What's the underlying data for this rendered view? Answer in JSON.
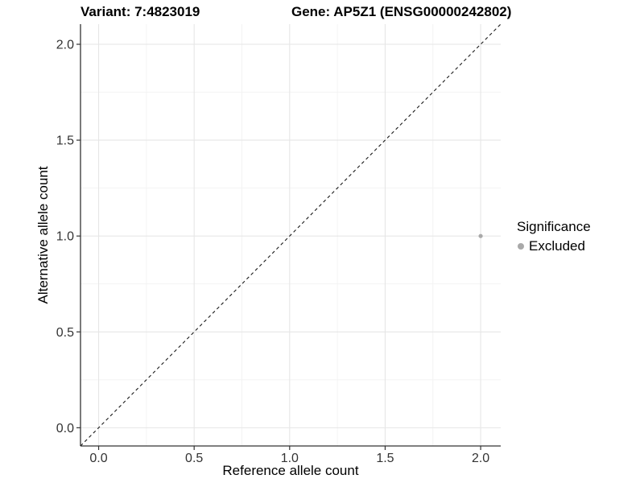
{
  "chart_data": {
    "type": "scatter",
    "title_left": "Variant: 7:4823019",
    "title_right": "Gene: AP5Z1 (ENSG00000242802)",
    "xlabel": "Reference allele count",
    "ylabel": "Alternative allele count",
    "xlim": [
      -0.095,
      2.105
    ],
    "ylim": [
      -0.095,
      2.105
    ],
    "x_ticks": {
      "values": [
        0,
        0.5,
        1,
        1.5,
        2
      ],
      "labels": [
        "0.0",
        "0.5",
        "1.0",
        "1.5",
        "2.0"
      ]
    },
    "y_ticks": {
      "values": [
        0,
        0.5,
        1,
        1.5,
        2
      ],
      "labels": [
        "0.0",
        "0.5",
        "1.0",
        "1.5",
        "2.0"
      ]
    },
    "x_minor": [
      0.25,
      0.75,
      1.25,
      1.75
    ],
    "y_minor": [
      0.25,
      0.75,
      1.25,
      1.75
    ],
    "grid": true,
    "legend_position": "right",
    "reference_line": {
      "type": "identity",
      "equation": "y = x",
      "style": "dashed",
      "color": "#1a1a1a"
    },
    "points": [
      {
        "x": 2,
        "y": 1,
        "series": "Excluded"
      }
    ],
    "legend": {
      "title": "Significance",
      "entries": [
        {
          "label": "Excluded",
          "color": "#a9a9a9"
        }
      ]
    },
    "colors": {
      "grid_major": "#e6e6e6",
      "grid_minor": "#f2f2f2",
      "axis": "#333333",
      "tick_label": "#333333",
      "point_excluded": "#a9a9a9"
    }
  }
}
